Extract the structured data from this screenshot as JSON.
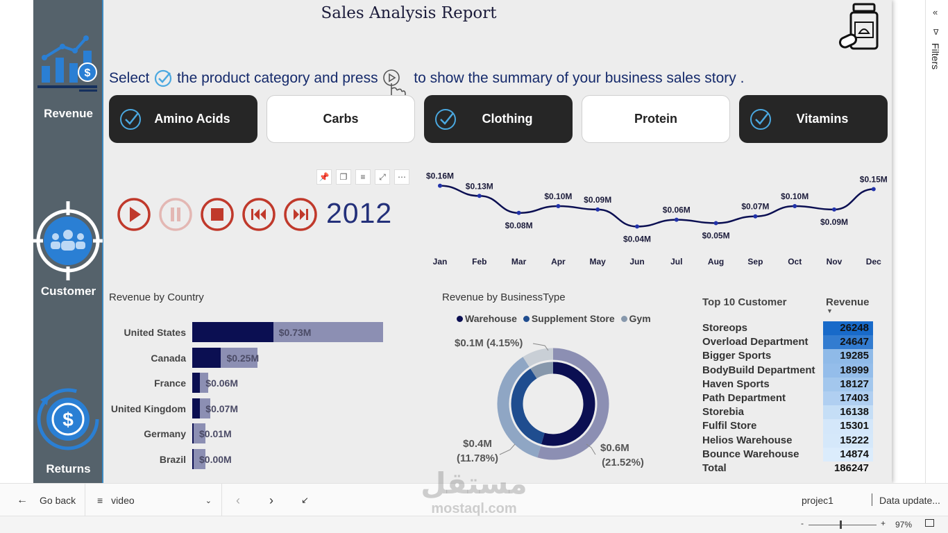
{
  "report": {
    "title": "Sales Analysis Report",
    "instruction_pre": "Select",
    "instruction_mid": "the product category and press",
    "instruction_post": "to show the summary of your business sales story ."
  },
  "sidebar": {
    "items": [
      {
        "label": "Revenue"
      },
      {
        "label": "Customer"
      },
      {
        "label": "Returns"
      }
    ]
  },
  "categories": [
    {
      "label": "Amino Acids",
      "selected": true
    },
    {
      "label": "Carbs",
      "selected": false
    },
    {
      "label": "Clothing",
      "selected": true
    },
    {
      "label": "Protein",
      "selected": false
    },
    {
      "label": "Vitamins",
      "selected": true
    }
  ],
  "player": {
    "year": "2012"
  },
  "colors": {
    "dark_navy": "#0b0f52",
    "light_navy": "#8c8fb3",
    "warehouse": "#0b0f52",
    "supplement": "#1f4d8f",
    "gym": "#8798ac",
    "accent": "#3b8fd9"
  },
  "line_chart": {
    "chart_data": {
      "type": "line",
      "categories": [
        "Jan",
        "Feb",
        "Mar",
        "Apr",
        "May",
        "Jun",
        "Jul",
        "Aug",
        "Sep",
        "Oct",
        "Nov",
        "Dec"
      ],
      "values": [
        0.16,
        0.13,
        0.08,
        0.1,
        0.09,
        0.04,
        0.06,
        0.05,
        0.07,
        0.1,
        0.09,
        0.15
      ],
      "labels": [
        "$0.16M",
        "$0.13M",
        "$0.08M",
        "$0.10M",
        "$0.09M",
        "$0.04M",
        "$0.06M",
        "$0.05M",
        "$0.07M",
        "$0.10M",
        "$0.09M",
        "$0.15M"
      ],
      "ylim": [
        0.0,
        0.2
      ]
    }
  },
  "country_chart": {
    "title": "Revenue by Country",
    "chart_data": {
      "type": "bar",
      "categories": [
        "United States",
        "Canada",
        "France",
        "United Kingdom",
        "Germany",
        "Brazil"
      ],
      "values": [
        0.73,
        0.25,
        0.06,
        0.07,
        0.01,
        0.0
      ],
      "labels": [
        "$0.73M",
        "$0.25M",
        "$0.06M",
        "$0.07M",
        "$0.01M",
        "$0.00M"
      ],
      "highlight": [
        0.31,
        0.11,
        0.03,
        0.03,
        0.005,
        0.003
      ]
    }
  },
  "business_chart": {
    "title": "Revenue by BusinessType",
    "legend": [
      "Warehouse",
      "Supplement Store",
      "Gym"
    ],
    "chart_data": {
      "type": "pie",
      "categories": [
        "Warehouse",
        "Supplement Store",
        "Gym"
      ],
      "values": [
        0.6,
        0.4,
        0.1
      ],
      "value_labels": [
        "$0.6M",
        "$0.4M",
        "$0.1M (4.15%)"
      ],
      "pct_labels": [
        "(21.52%)",
        "(11.78%)",
        ""
      ]
    }
  },
  "customers": {
    "title": "Top 10 Customer",
    "col_revenue": "Revenue",
    "rows": [
      {
        "name": "Storeops",
        "value": "26248"
      },
      {
        "name": "Overload Department",
        "value": "24647"
      },
      {
        "name": "Bigger Sports",
        "value": "19285"
      },
      {
        "name": "BodyBuild Department",
        "value": "18999"
      },
      {
        "name": "Haven Sports",
        "value": "18127"
      },
      {
        "name": "Path Department",
        "value": "17403"
      },
      {
        "name": "Storebia",
        "value": "16138"
      },
      {
        "name": "Fulfil Store",
        "value": "15301"
      },
      {
        "name": "Helios Warehouse",
        "value": "15222"
      },
      {
        "name": "Bounce Warehouse",
        "value": "14874"
      }
    ],
    "total_label": "Total",
    "total_value": "186247"
  },
  "footer": {
    "go_back": "Go back",
    "page": "video",
    "project": "projec1",
    "data_update": "Data update..."
  },
  "zoom": {
    "minus": "-",
    "plus": "+",
    "value": "97%"
  },
  "filters_label": "Filters",
  "watermark": {
    "top": "مستقل",
    "bottom": "mostaql.com"
  }
}
